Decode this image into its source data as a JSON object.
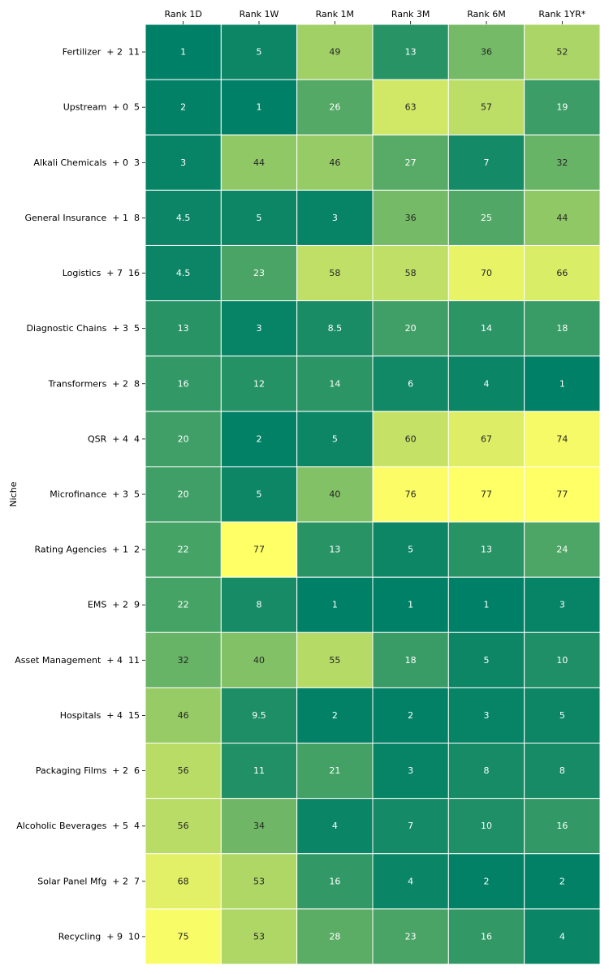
{
  "chart_data": {
    "type": "heatmap",
    "title": "",
    "xlabel": "",
    "ylabel": "Niche",
    "colormap": "summer (low = dark green, high = yellow)",
    "color_low": "#008066",
    "color_high": "#ffff66",
    "value_range": [
      1,
      77
    ],
    "columns": [
      "Rank 1D",
      "Rank 1W",
      "Rank 1M",
      "Rank 3M",
      "Rank 6M",
      "Rank 1YR*"
    ],
    "rows": [
      "Fertilizer  + 2  11",
      "Upstream  + 0  5",
      "Alkali Chemicals  + 0  3",
      "General Insurance  + 1  8",
      "Logistics  + 7  16",
      "Diagnostic Chains  + 3  5",
      "Transformers  + 2  8",
      "QSR  + 4  4",
      "Microfinance  + 3  5",
      "Rating Agencies  + 1  2",
      "EMS  + 2  9",
      "Asset Management  + 4  11",
      "Hospitals  + 4  15",
      "Packaging Films  + 2  6",
      "Alcoholic Beverages  + 5  4",
      "Solar Panel Mfg  + 2  7",
      "Recycling  + 9  10"
    ],
    "values": [
      [
        1,
        5,
        49,
        13,
        36,
        52
      ],
      [
        2,
        1,
        26,
        63,
        57,
        19
      ],
      [
        3,
        44,
        46,
        27,
        7,
        32
      ],
      [
        4.5,
        5,
        3,
        36,
        25,
        44
      ],
      [
        4.5,
        23,
        58,
        58,
        70,
        66
      ],
      [
        13,
        3,
        8.5,
        20,
        14,
        18
      ],
      [
        16,
        12,
        14,
        6,
        4,
        1
      ],
      [
        20,
        2,
        5,
        60,
        67,
        74
      ],
      [
        20,
        5,
        40,
        76,
        77,
        77
      ],
      [
        22,
        77,
        13,
        5,
        13,
        24
      ],
      [
        22,
        8,
        1,
        1,
        1,
        3
      ],
      [
        32,
        40,
        55,
        18,
        5,
        10
      ],
      [
        46,
        9.5,
        2,
        2,
        3,
        5
      ],
      [
        56,
        11,
        21,
        3,
        8,
        8
      ],
      [
        56,
        34,
        4,
        7,
        10,
        16
      ],
      [
        68,
        53,
        16,
        4,
        2,
        2
      ],
      [
        75,
        53,
        28,
        23,
        16,
        4
      ]
    ],
    "text_color_dark": "#262626",
    "text_color_light": "#ffffff"
  }
}
